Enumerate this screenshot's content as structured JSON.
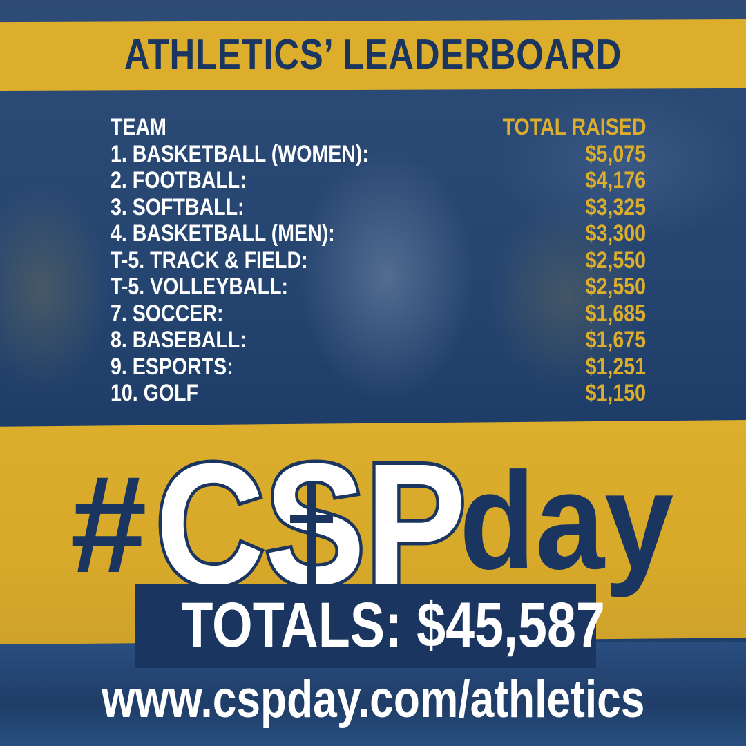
{
  "title": "ATHLETICS’ LEADERBOARD",
  "leaderboard": {
    "header": {
      "team": "TEAM",
      "amount": "TOTAL RAISED"
    },
    "rows": [
      {
        "team": "1. BASKETBALL (WOMEN):",
        "amount": "$5,075"
      },
      {
        "team": "2. FOOTBALL:",
        "amount": "$4,176"
      },
      {
        "team": "3. SOFTBALL:",
        "amount": "$3,325"
      },
      {
        "team": "4. BASKETBALL (MEN):",
        "amount": "$3,300"
      },
      {
        "team": "T-5. TRACK & FIELD:",
        "amount": "$2,550"
      },
      {
        "team": "T-5. VOLLEYBALL:",
        "amount": "$2,550"
      },
      {
        "team": "7. SOCCER:",
        "amount": "$1,685"
      },
      {
        "team": "8. BASEBALL:",
        "amount": "$1,675"
      },
      {
        "team": "9. ESPORTS:",
        "amount": "$1,251"
      },
      {
        "team": "10. GOLF",
        "amount": "$1,150"
      }
    ]
  },
  "hashtag": {
    "hash": "#",
    "logo": "CSP",
    "suffix": "day"
  },
  "totals": "TOTALS: $45,587",
  "url": "www.cspday.com/athletics",
  "colors": {
    "navy": "#1b3561",
    "gold": "#dcae2c",
    "white": "#ffffff"
  }
}
